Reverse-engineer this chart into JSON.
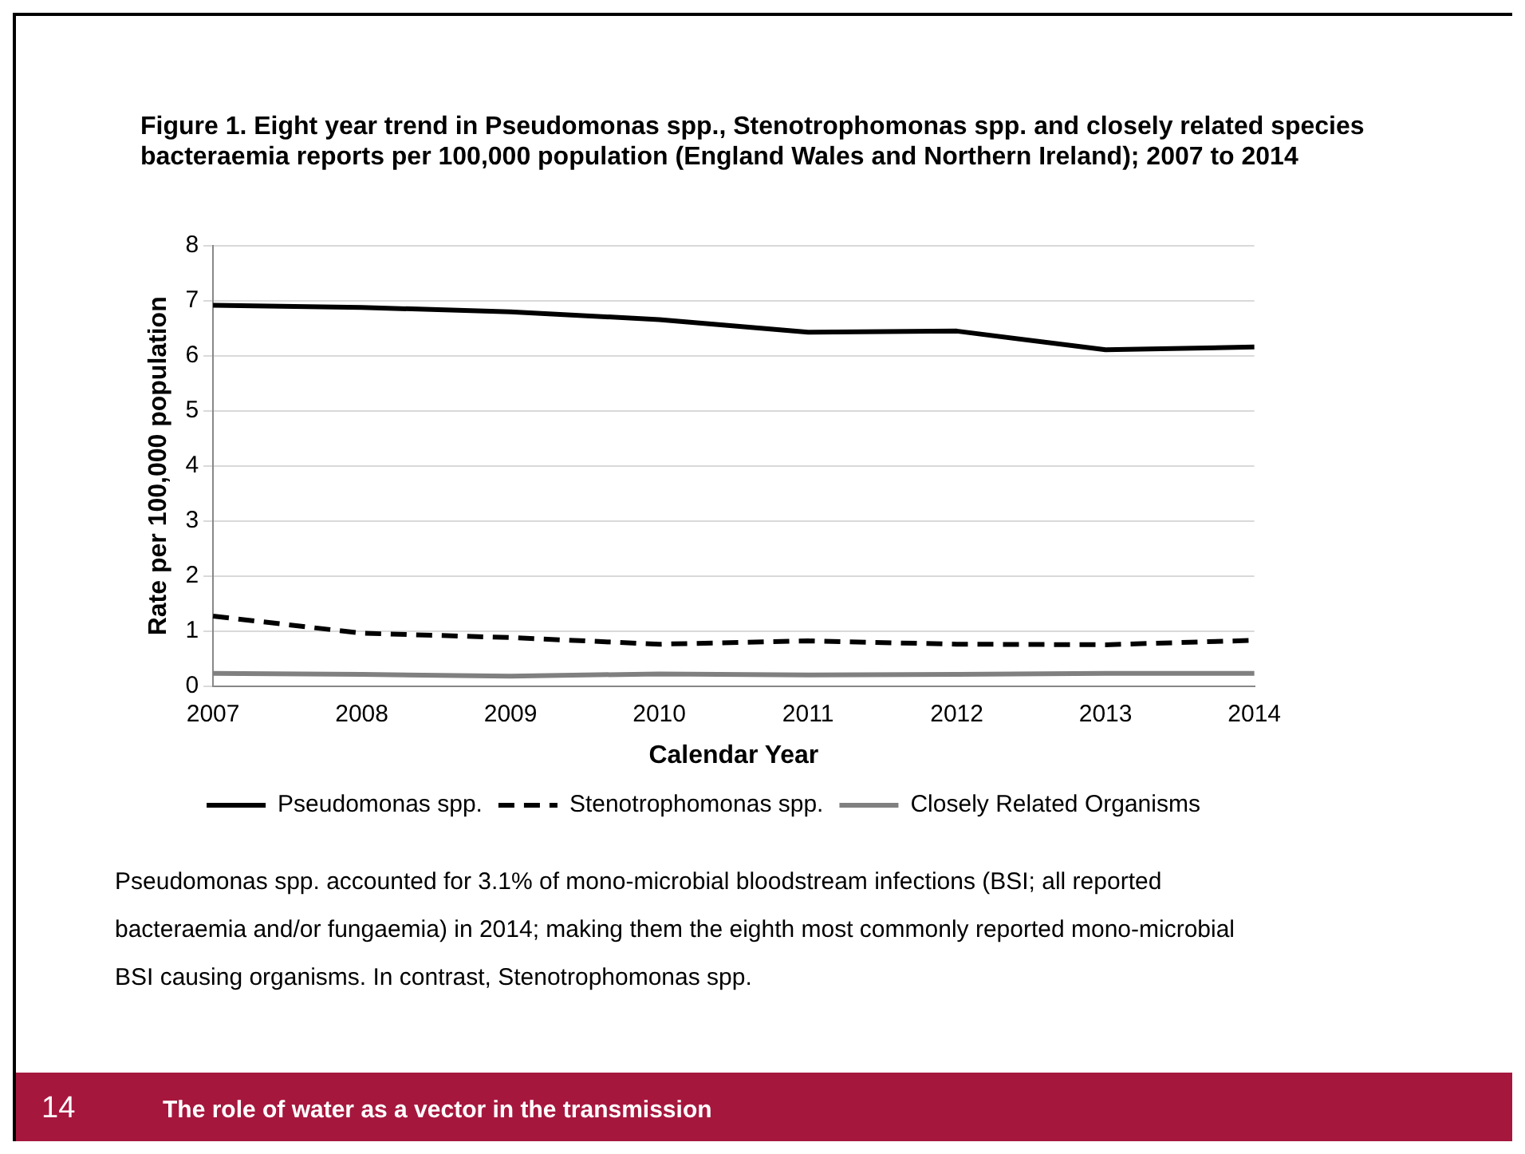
{
  "chart_data": {
    "type": "line",
    "title": "Figure 1. Eight year trend in Pseudomonas spp., Stenotrophomonas spp. and closely related species bacteraemia reports per 100,000 population (England Wales and Northern Ireland); 2007 to 2014",
    "xlabel": "Calendar Year",
    "ylabel": "Rate per 100,000 population",
    "categories": [
      "2007",
      "2008",
      "2009",
      "2010",
      "2011",
      "2012",
      "2013",
      "2014"
    ],
    "series": [
      {
        "name": "Pseudomonas spp.",
        "color": "#000000",
        "line_style": "solid",
        "values": [
          6.92,
          6.88,
          6.8,
          6.66,
          6.43,
          6.45,
          6.11,
          6.16
        ]
      },
      {
        "name": "Stenotrophomonas spp.",
        "color": "#000000",
        "line_style": "dashed",
        "values": [
          1.27,
          0.96,
          0.88,
          0.76,
          0.82,
          0.76,
          0.75,
          0.83
        ]
      },
      {
        "name": "Closely Related Organisms",
        "color": "#808080",
        "line_style": "solid",
        "values": [
          0.23,
          0.21,
          0.18,
          0.22,
          0.2,
          0.21,
          0.23,
          0.23
        ]
      }
    ],
    "ylim": [
      0,
      8
    ],
    "yticks": [
      0,
      1,
      2,
      3,
      4,
      5,
      6,
      7,
      8
    ],
    "grid": "y",
    "legend": "bottom",
    "marker": "none",
    "annotations": [
      "Pseudomonas spp. accounted for 3.1% of mono-microbial bloodstream infections (BSI; all reported bacteraemia and/or fungaemia) in 2014; making them the eighth most commonly reported mono-microbial BSI causing organisms. In contrast, Stenotrophomonas spp.",
      "14",
      "The role of water as a vector in the transmission"
    ]
  }
}
